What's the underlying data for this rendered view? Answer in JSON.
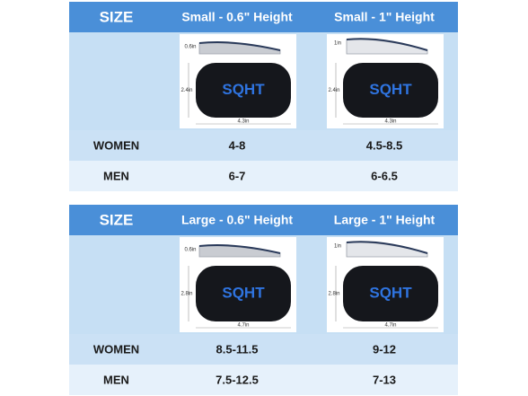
{
  "brand": "SQHT",
  "tables": [
    {
      "header": [
        "SIZE",
        "Small - 0.6\" Height",
        "Small - 1\" Height"
      ],
      "dims": [
        {
          "height": "0.6in",
          "width": "2.4in",
          "length": "4.3in"
        },
        {
          "height": "1in",
          "width": "2.4in",
          "length": "4.3in"
        }
      ],
      "rows": [
        [
          "WOMEN",
          "4-8",
          "4.5-8.5"
        ],
        [
          "MEN",
          "6-7",
          "6-6.5"
        ]
      ]
    },
    {
      "header": [
        "SIZE",
        "Large - 0.6\" Height",
        "Large - 1\" Height"
      ],
      "dims": [
        {
          "height": "0.6in",
          "width": "2.8in",
          "length": "4.7in"
        },
        {
          "height": "1in",
          "width": "2.8in",
          "length": "4.7in"
        }
      ],
      "rows": [
        [
          "WOMEN",
          "8.5-11.5",
          "9-12"
        ],
        [
          "MEN",
          "7.5-12.5",
          "7-13"
        ]
      ]
    }
  ]
}
